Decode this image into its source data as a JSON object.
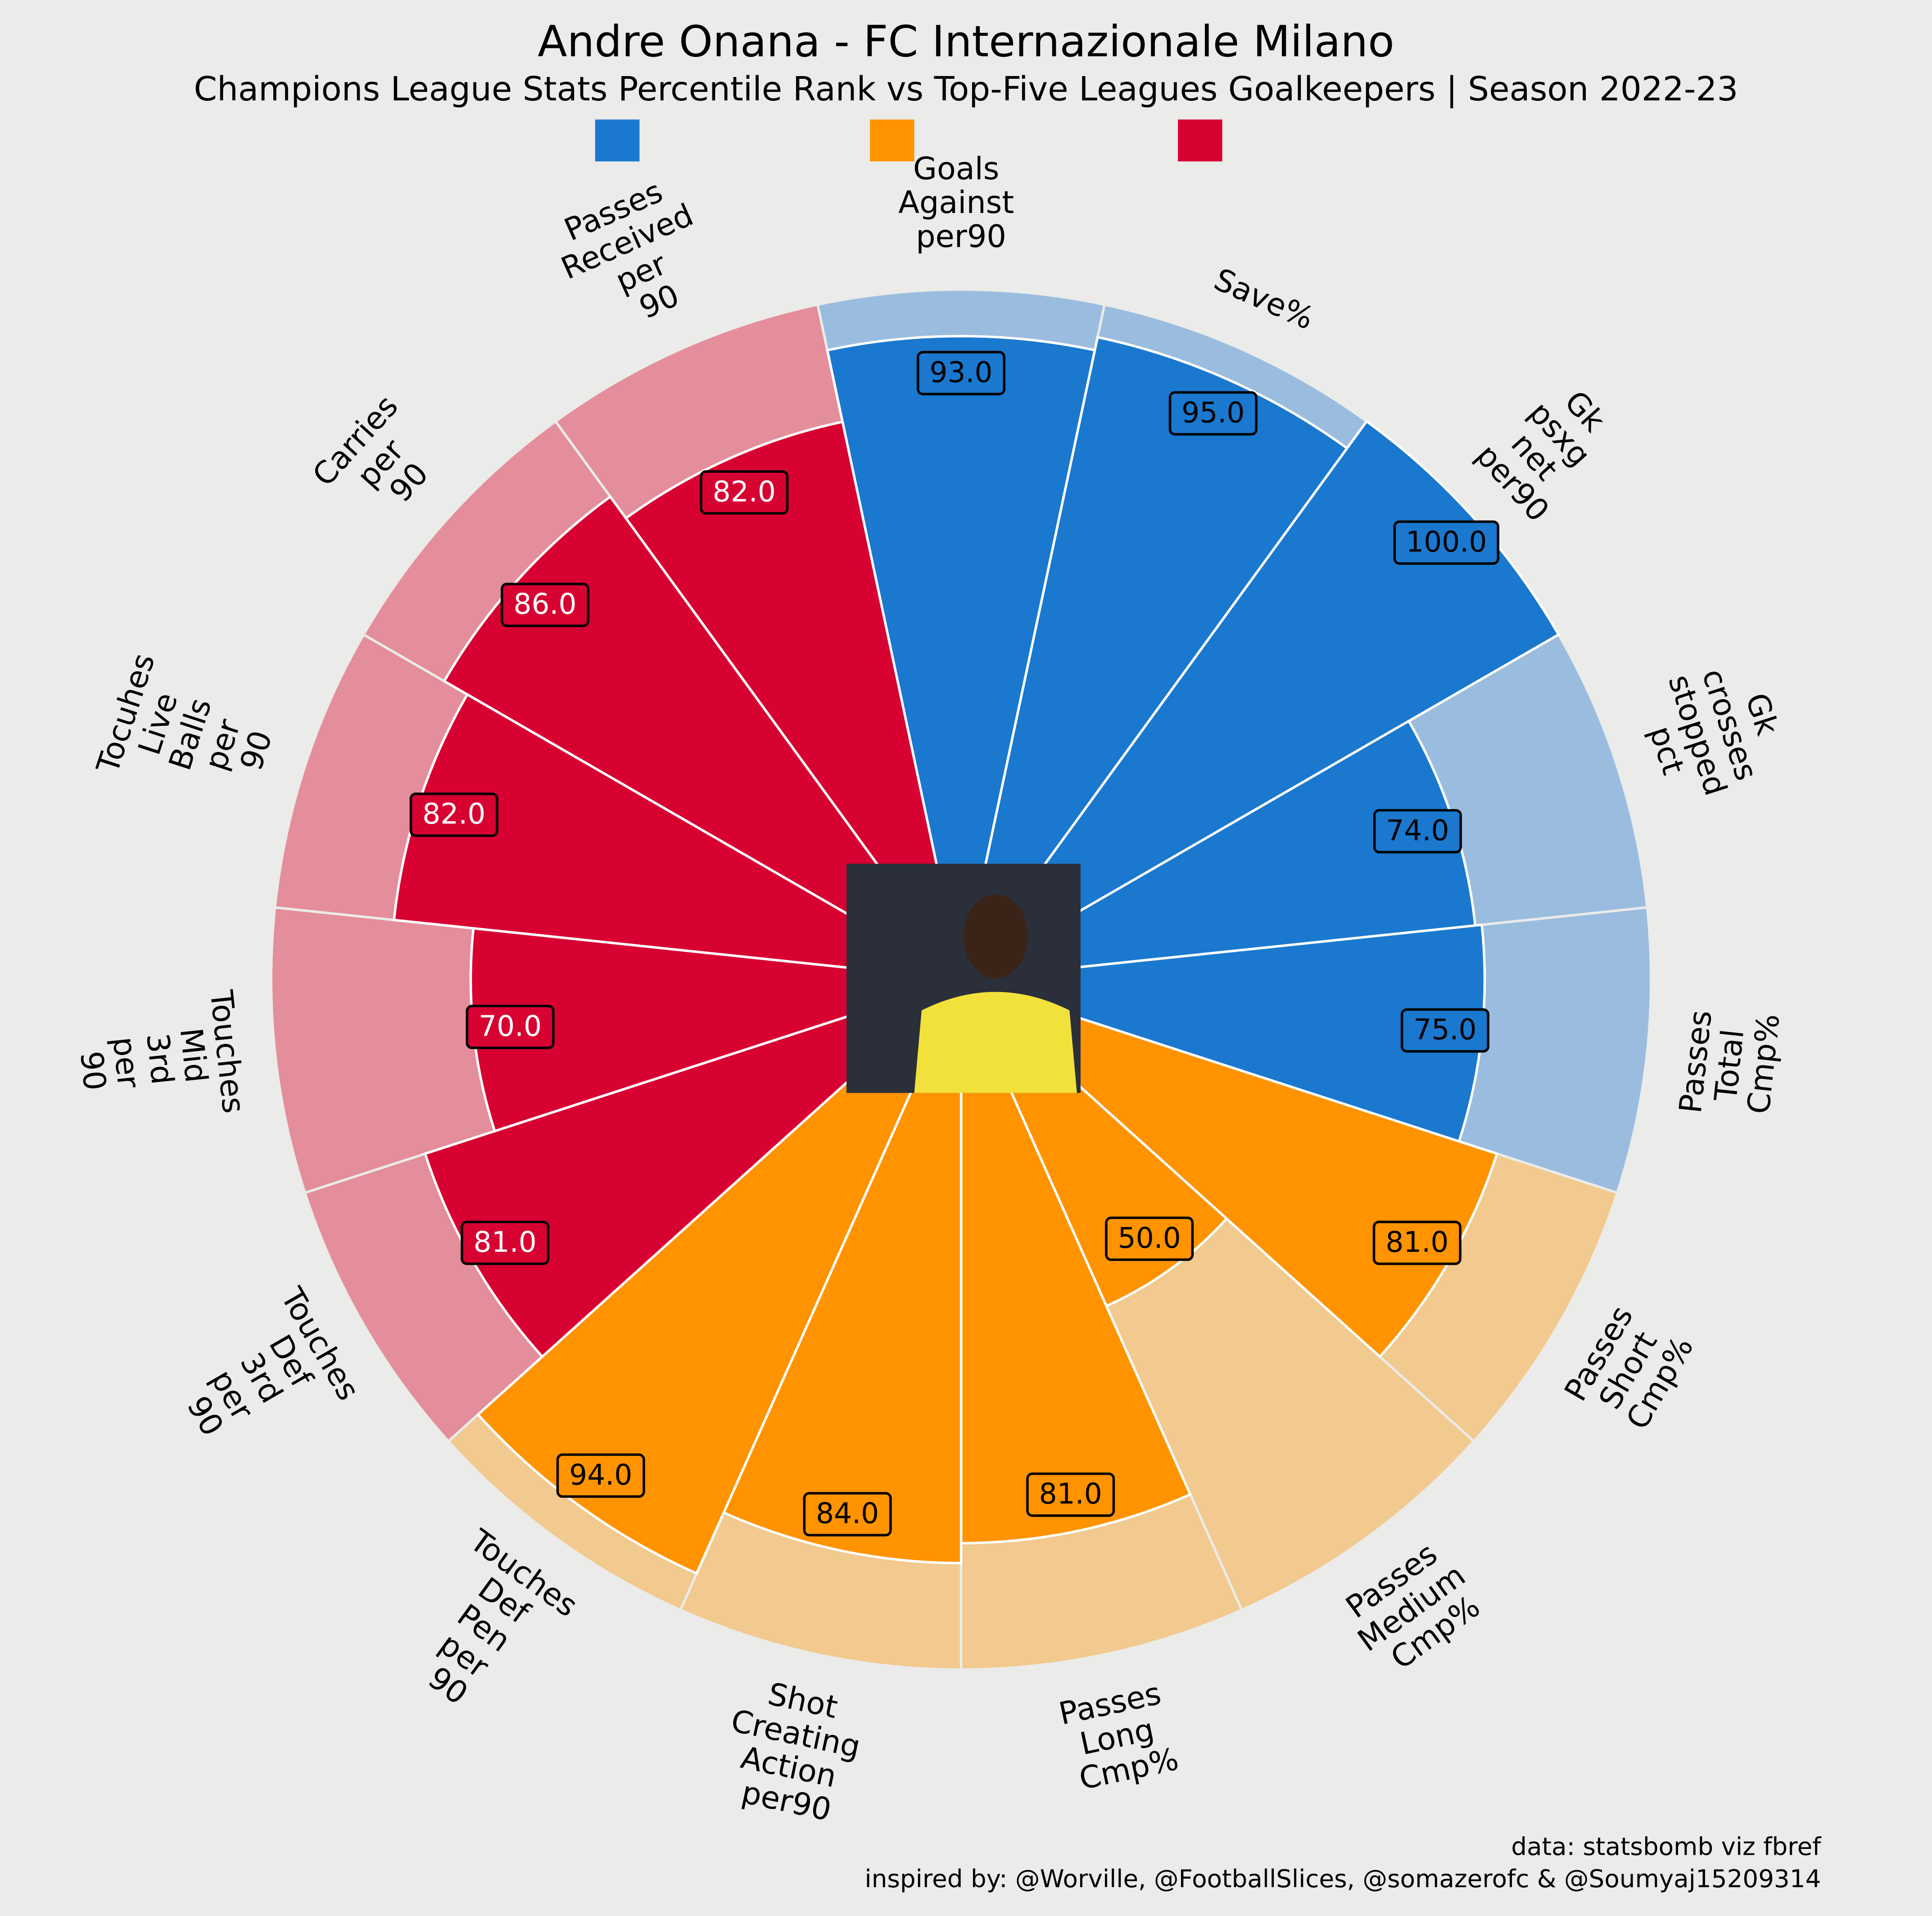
{
  "chart_data": {
    "type": "pizza",
    "title": "Andre Onana - FC Internazionale Milano",
    "subtitle": "Champions League Stats Percentile Rank vs Top-Five Leagues Goalkeepers | Season 2022-23",
    "params": [
      "Goals Against per90",
      "Save%",
      "Gk psxg net per90",
      "Gk crosses stopped pct",
      "Passes Total Cmp%",
      "Passes Short Cmp%",
      "Passes Medium Cmp%",
      "Passes Long Cmp%",
      "Shot Creating Action per90",
      "Touches Def Pen per 90",
      "Touches Def 3rd per 90",
      "Touches Mid 3rd per 90",
      "Tocuhes Live Balls per 90",
      "Carries per 90",
      "Passes Received per 90"
    ],
    "values": [
      93,
      95,
      100,
      74,
      75,
      81,
      50,
      81,
      84,
      94,
      81,
      70,
      82,
      86,
      82
    ],
    "value_labels": [
      "93.0",
      "95.0",
      "100.0",
      "74.0",
      "75.0",
      "81.0",
      "50.0",
      "81.0",
      "84.0",
      "94.0",
      "81.0",
      "70.0",
      "82.0",
      "86.0",
      "82.0"
    ],
    "slice_colors": [
      "#1a78cf",
      "#1a78cf",
      "#1a78cf",
      "#1a78cf",
      "#1a78cf",
      "#ff9300",
      "#ff9300",
      "#ff9300",
      "#ff9300",
      "#ff9300",
      "#d70232",
      "#d70232",
      "#d70232",
      "#d70232",
      "#d70232"
    ],
    "background_colors": [
      "#9abddf",
      "#9abddf",
      "#9abddf",
      "#9abddf",
      "#9abddf",
      "#f2c98e",
      "#f2c98e",
      "#f2c98e",
      "#f2c98e",
      "#f2c98e",
      "#e48e9b",
      "#e48e9b",
      "#e48e9b",
      "#e48e9b",
      "#e48e9b"
    ],
    "value_text_colors": [
      "#000000",
      "#000000",
      "#000000",
      "#000000",
      "#000000",
      "#000000",
      "#000000",
      "#000000",
      "#000000",
      "#000000",
      "#ffffff",
      "#ffffff",
      "#ffffff",
      "#ffffff",
      "#ffffff"
    ],
    "ylim": [
      0,
      100
    ],
    "credits": [
      "data: statsbomb viz fbref",
      "inspired by: @Worville, @FootballSlices, @somazerofc & @Soumyaj15209314"
    ]
  }
}
